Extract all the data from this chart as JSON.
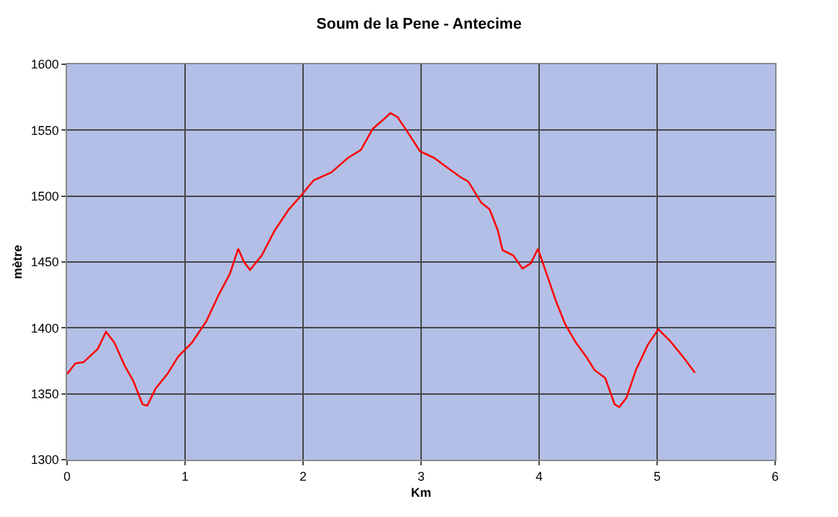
{
  "chart_data": {
    "type": "line",
    "title": "Soum de la Pene - Antecime",
    "xlabel": "Km",
    "ylabel": "mètre",
    "x": [
      0,
      0.07,
      0.14,
      0.26,
      0.33,
      0.4,
      0.49,
      0.56,
      0.64,
      0.68,
      0.75,
      0.85,
      0.94,
      1.06,
      1.18,
      1.29,
      1.38,
      1.45,
      1.5,
      1.55,
      1.65,
      1.76,
      1.88,
      1.98,
      2.09,
      2.24,
      2.38,
      2.49,
      2.59,
      2.68,
      2.74,
      2.8,
      2.89,
      2.99,
      3.11,
      3.2,
      3.34,
      3.4,
      3.51,
      3.58,
      3.65,
      3.69,
      3.78,
      3.86,
      3.93,
      3.99,
      4.06,
      4.14,
      4.22,
      4.31,
      4.4,
      4.47,
      4.56,
      4.64,
      4.68,
      4.74,
      4.82,
      4.92,
      5.01,
      5.11,
      5.22,
      5.32
    ],
    "series": [
      {
        "color": "#ff0000",
        "values": [
          1365,
          1373,
          1374,
          1384,
          1397,
          1389,
          1371,
          1360,
          1342,
          1341,
          1354,
          1365,
          1378,
          1389,
          1405,
          1426,
          1441,
          1460,
          1450,
          1444,
          1455,
          1474,
          1490,
          1500,
          1512,
          1518,
          1529,
          1535,
          1551,
          1558,
          1563,
          1560,
          1548,
          1534,
          1529,
          1523,
          1514,
          1511,
          1495,
          1490,
          1474,
          1459,
          1455,
          1445,
          1449,
          1460,
          1442,
          1421,
          1403,
          1389,
          1378,
          1368,
          1362,
          1342,
          1340,
          1347,
          1368,
          1387,
          1399,
          1390,
          1378,
          1366
        ]
      }
    ],
    "xlim": [
      0,
      6
    ],
    "xticks": [
      0,
      1,
      2,
      3,
      4,
      5,
      6
    ],
    "ylim": [
      1300,
      1600
    ],
    "yticks": [
      1300,
      1350,
      1400,
      1450,
      1500,
      1550,
      1600
    ],
    "grid": true,
    "marker": "none",
    "line_style": "solid"
  }
}
